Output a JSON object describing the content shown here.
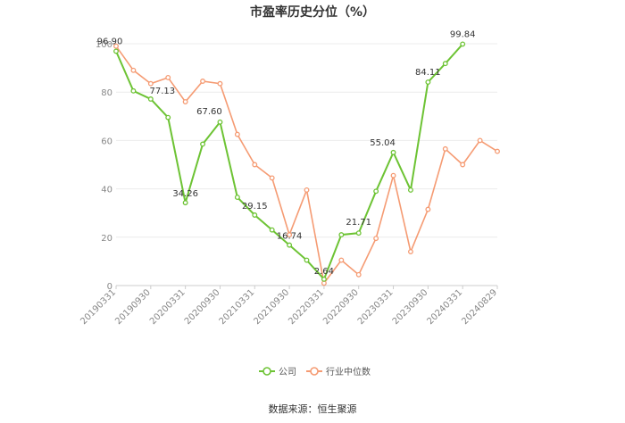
{
  "chart_data": {
    "type": "line",
    "title": "市盈率历史分位（%）",
    "ylim": [
      0,
      100
    ],
    "yticks": [
      0,
      20,
      40,
      60,
      80,
      100
    ],
    "grid": true,
    "legend_placement": "bottom",
    "x": [
      "20190331",
      "20190630",
      "20190930",
      "20191231",
      "20200331",
      "20200630",
      "20200930",
      "20201231",
      "20210331",
      "20210630",
      "20210930",
      "20211231",
      "20220331",
      "20220630",
      "20220930",
      "20221231",
      "20230331",
      "20230630",
      "20230930",
      "20231231",
      "20240331",
      "20240630",
      "20240829"
    ],
    "xtick_labels": [
      "20190331",
      "20190930",
      "20200331",
      "20200930",
      "20210331",
      "20210930",
      "20220331",
      "20220930",
      "20230331",
      "20230930",
      "20240331",
      "20240829"
    ],
    "series": [
      {
        "name": "公司",
        "color": "#6dc334",
        "values": [
          96.9,
          80.5,
          77.13,
          69.5,
          34.26,
          58.5,
          67.6,
          36.5,
          29.15,
          23.0,
          16.74,
          10.5,
          2.64,
          21.0,
          21.71,
          39.0,
          55.04,
          39.5,
          84.11,
          91.8,
          99.84,
          null,
          null
        ],
        "labels": [
          {
            "index": 0,
            "text": "96.90"
          },
          {
            "index": 2,
            "text": "77.13"
          },
          {
            "index": 4,
            "text": "34.26"
          },
          {
            "index": 6,
            "text": "67.60"
          },
          {
            "index": 8,
            "text": "29.15"
          },
          {
            "index": 10,
            "text": "16.74"
          },
          {
            "index": 12,
            "text": "2.64"
          },
          {
            "index": 14,
            "text": "21.71"
          },
          {
            "index": 16,
            "text": "55.04"
          },
          {
            "index": 18,
            "text": "84.11"
          },
          {
            "index": 20,
            "text": "99.84"
          }
        ]
      },
      {
        "name": "行业中位数",
        "color": "#f59b73",
        "values": [
          99.0,
          89.0,
          83.5,
          86.0,
          76.0,
          84.5,
          83.5,
          62.5,
          50.0,
          44.5,
          21.0,
          39.5,
          1.0,
          10.5,
          4.5,
          19.5,
          45.5,
          14.0,
          31.5,
          56.5,
          50.0,
          60.0,
          55.5
        ]
      }
    ],
    "source": "数据来源：恒生聚源"
  }
}
